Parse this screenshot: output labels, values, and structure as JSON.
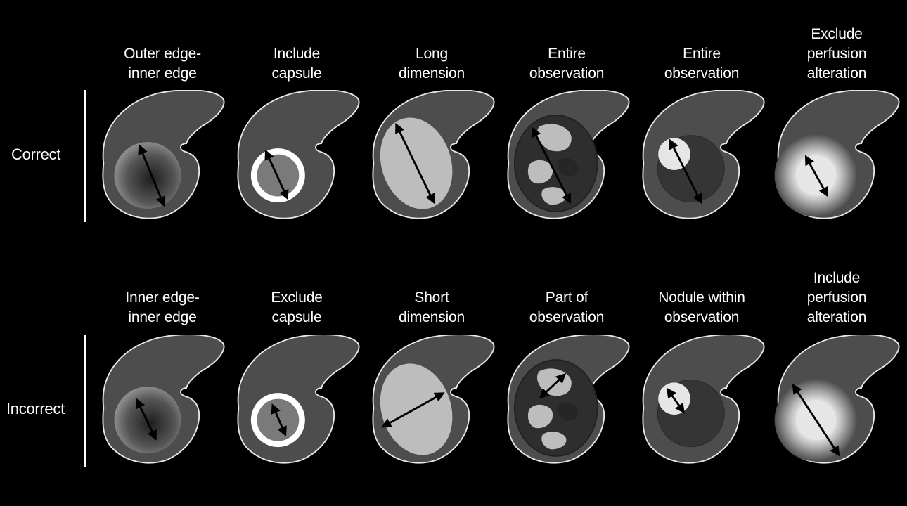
{
  "rows": [
    {
      "label": "Correct",
      "columns": [
        {
          "lines": [
            "",
            "Outer edge-",
            "inner edge"
          ]
        },
        {
          "lines": [
            "",
            "Include",
            "capsule"
          ]
        },
        {
          "lines": [
            "",
            "Long",
            "dimension"
          ]
        },
        {
          "lines": [
            "",
            "Entire",
            "observation"
          ]
        },
        {
          "lines": [
            "",
            "Entire",
            "observation"
          ]
        },
        {
          "lines": [
            "Exclude",
            "perfusion",
            "alteration"
          ]
        }
      ]
    },
    {
      "label": "Incorrect",
      "columns": [
        {
          "lines": [
            "",
            "Inner edge-",
            "inner edge"
          ]
        },
        {
          "lines": [
            "",
            "Exclude",
            "capsule"
          ]
        },
        {
          "lines": [
            "",
            "Short",
            "dimension"
          ]
        },
        {
          "lines": [
            "",
            "Part of",
            "observation"
          ]
        },
        {
          "lines": [
            "",
            "Nodule within",
            "observation"
          ]
        },
        {
          "lines": [
            "Include",
            "perfusion",
            "alteration"
          ]
        }
      ]
    }
  ],
  "colors": {
    "background": "#000000",
    "liver_fill": "#4d4d4d",
    "liver_outline": "#e8e8e8",
    "lesion_light": "#bdbdbd",
    "arrow": "#000000"
  }
}
